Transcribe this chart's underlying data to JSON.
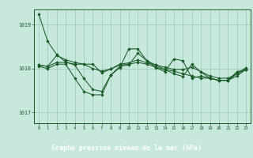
{
  "title": "Graphe pression niveau de la mer (hPa)",
  "background_color": "#c8e8dc",
  "label_bg_color": "#4a7a5a",
  "grid_color": "#a0ccbb",
  "line_color": "#1a5c28",
  "xlim": [
    -0.5,
    23.5
  ],
  "ylim": [
    1016.75,
    1019.35
  ],
  "yticks": [
    1017,
    1018,
    1019
  ],
  "xticks": [
    0,
    1,
    2,
    3,
    4,
    5,
    6,
    7,
    8,
    9,
    10,
    11,
    12,
    13,
    14,
    15,
    16,
    17,
    18,
    19,
    20,
    21,
    22,
    23
  ],
  "series": [
    [
      1019.25,
      1018.62,
      1018.32,
      1018.15,
      1018.08,
      1017.78,
      1017.52,
      1017.48,
      1017.85,
      1018.05,
      1018.08,
      1018.35,
      1018.18,
      1018.08,
      1017.98,
      1017.88,
      1017.82,
      1018.1,
      1017.92,
      1017.78,
      1017.73,
      1017.73,
      1017.93,
      1017.98
    ],
    [
      1018.08,
      1018.05,
      1018.3,
      1018.2,
      1018.14,
      1018.1,
      1018.1,
      1017.9,
      1017.99,
      1018.1,
      1018.13,
      1018.2,
      1018.13,
      1018.08,
      1018.03,
      1017.98,
      1017.98,
      1018.03,
      1017.93,
      1017.83,
      1017.78,
      1017.78,
      1017.88,
      1017.98
    ],
    [
      1018.08,
      1018.05,
      1018.14,
      1018.14,
      1018.1,
      1018.1,
      1018.0,
      1017.94,
      1017.99,
      1018.08,
      1018.1,
      1018.14,
      1018.1,
      1018.03,
      1017.98,
      1017.94,
      1017.88,
      1017.83,
      1017.78,
      1017.78,
      1017.73,
      1017.73,
      1017.83,
      1017.98
    ],
    [
      1018.05,
      1018.0,
      1018.1,
      1018.1,
      1017.78,
      1017.48,
      1017.4,
      1017.4,
      1017.85,
      1018.02,
      1018.45,
      1018.45,
      1018.18,
      1018.02,
      1017.93,
      1018.22,
      1018.18,
      1017.78,
      1017.83,
      1017.78,
      1017.73,
      1017.73,
      1017.88,
      1018.02
    ]
  ]
}
